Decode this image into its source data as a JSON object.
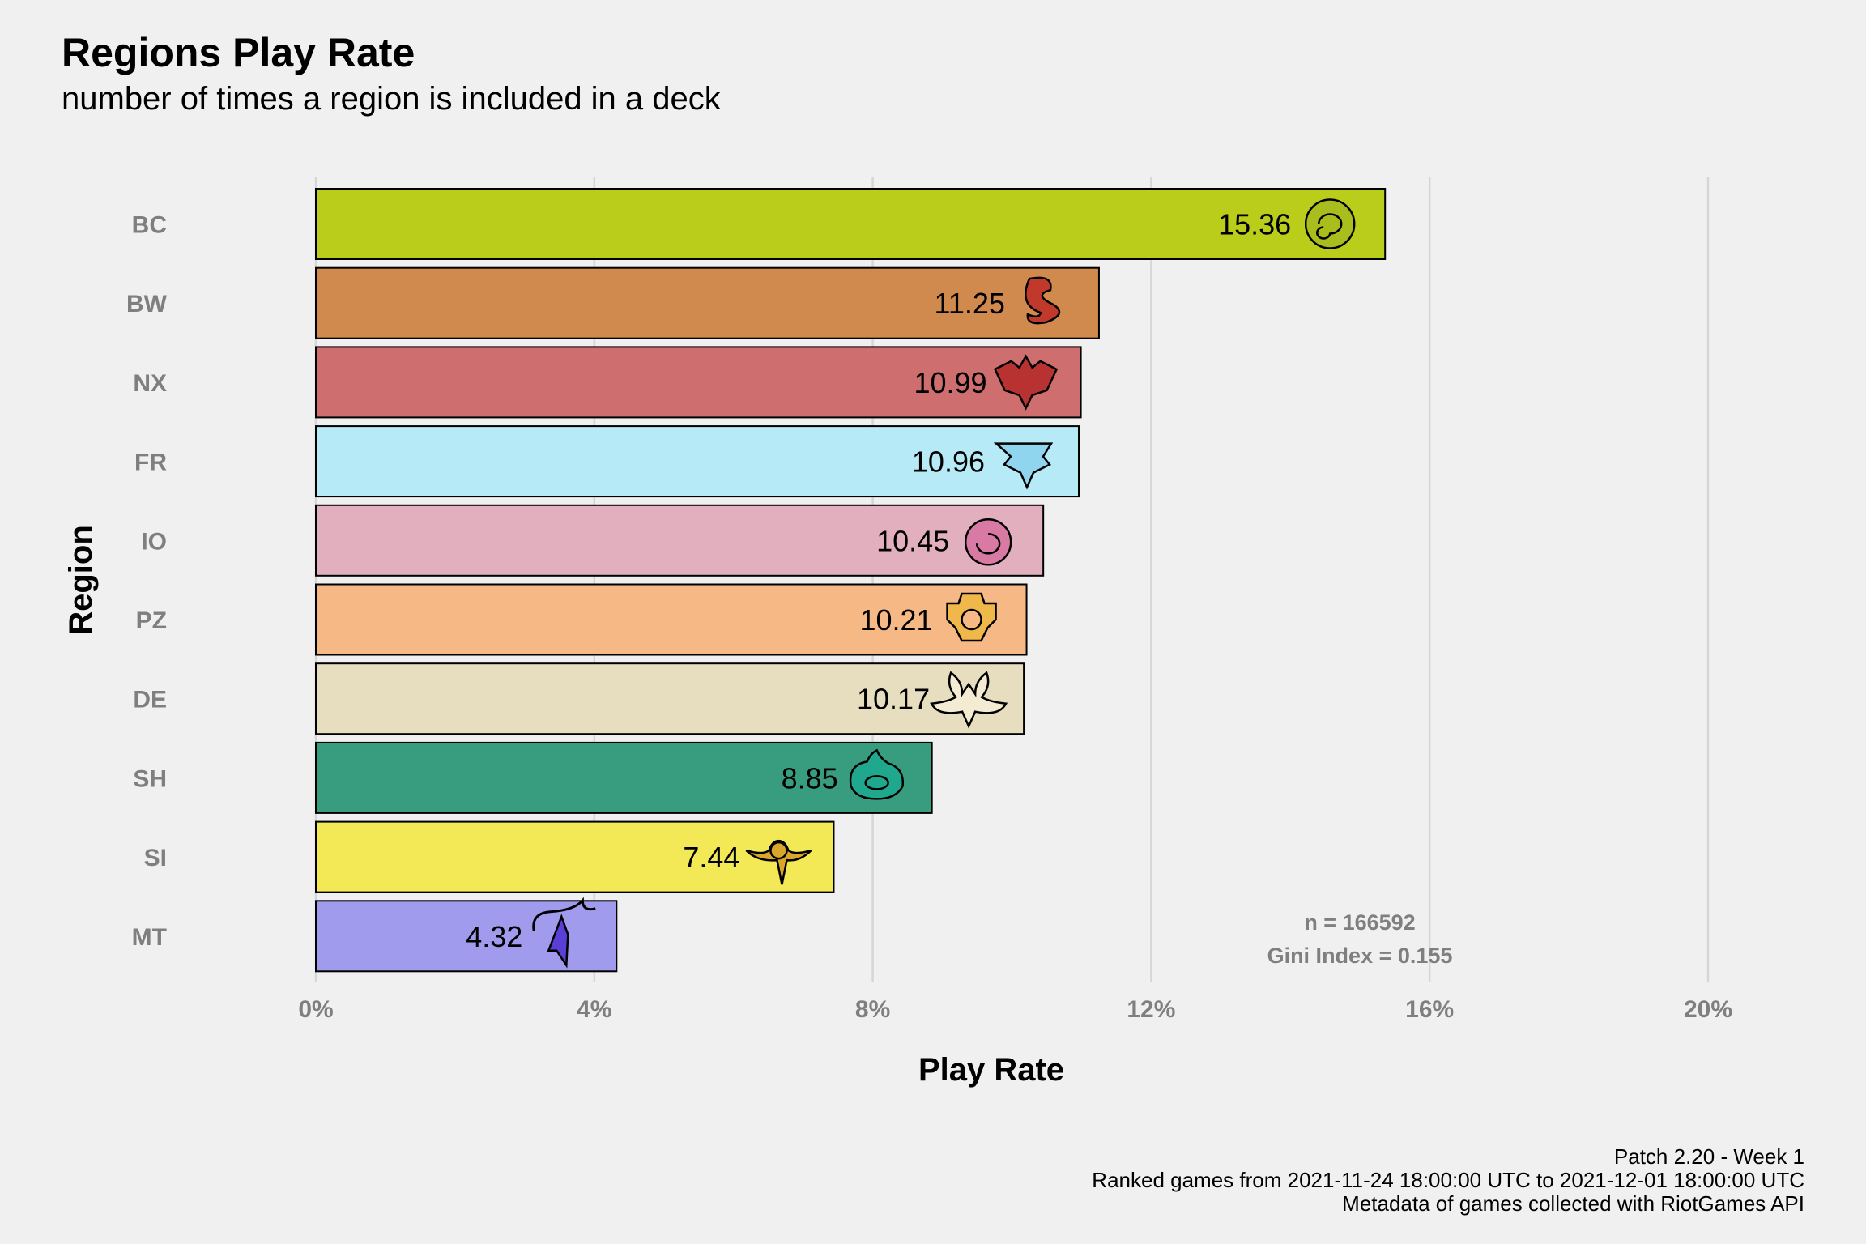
{
  "chart_data": {
    "type": "bar",
    "orientation": "horizontal",
    "title": "Regions Play Rate",
    "subtitle": "number of times a region is included in a deck",
    "xlabel": "Play Rate",
    "ylabel": "Region",
    "xlim": [
      0,
      20
    ],
    "xticks": [
      "0%",
      "4%",
      "8%",
      "12%",
      "16%",
      "20%"
    ],
    "grid": "vertical",
    "categories": [
      "BC",
      "BW",
      "NX",
      "FR",
      "IO",
      "PZ",
      "DE",
      "SH",
      "SI",
      "MT"
    ],
    "values": [
      15.36,
      11.25,
      10.99,
      10.96,
      10.45,
      10.21,
      10.17,
      8.85,
      7.44,
      4.32
    ],
    "value_labels": [
      "15.36",
      "11.25",
      "10.99",
      "10.96",
      "10.45",
      "10.21",
      "10.17",
      "8.85",
      "7.44",
      "4.32"
    ],
    "colors": [
      "#bacd1a",
      "#d18a4e",
      "#cf6e6e",
      "#b7eaf7",
      "#e2afbf",
      "#f6b985",
      "#e7dec0",
      "#389d7e",
      "#f3e957",
      "#a19bed"
    ],
    "icons": [
      "bandle-city-icon",
      "bilgewater-icon",
      "noxus-icon",
      "freljord-icon",
      "ionia-icon",
      "piltover-zaun-icon",
      "demacia-icon",
      "shurima-icon",
      "shadow-isles-icon",
      "mount-targon-icon"
    ],
    "annotations": [
      "n = 166592",
      "Gini Index = 0.155"
    ],
    "caption": [
      "Patch 2.20 - Week 1",
      "Ranked games from 2021-11-24 18:00:00 UTC to 2021-12-01 18:00:00 UTC",
      "Metadata of games collected with RiotGames API"
    ]
  }
}
